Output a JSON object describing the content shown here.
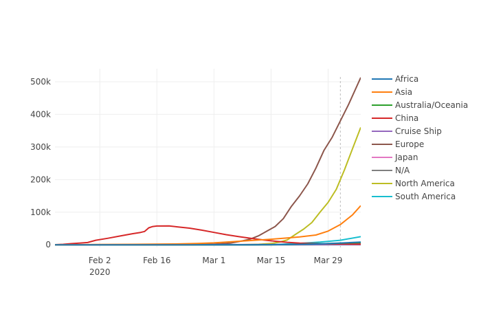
{
  "chart_data": {
    "type": "line",
    "title": "",
    "xlabel": "",
    "ylabel": "",
    "x_ticks": [
      {
        "date": "2020-02-02",
        "label": "Feb 2",
        "sublabel": "2020"
      },
      {
        "date": "2020-02-16",
        "label": "Feb 16",
        "sublabel": ""
      },
      {
        "date": "2020-03-01",
        "label": "Mar 1",
        "sublabel": ""
      },
      {
        "date": "2020-03-15",
        "label": "Mar 15",
        "sublabel": ""
      },
      {
        "date": "2020-03-29",
        "label": "Mar 29",
        "sublabel": ""
      }
    ],
    "xlim": [
      "2020-01-22",
      "2020-04-06"
    ],
    "y_ticks": [
      {
        "value": 0,
        "label": "0"
      },
      {
        "value": 100000,
        "label": "100k"
      },
      {
        "value": 200000,
        "label": "200k"
      },
      {
        "value": 300000,
        "label": "300k"
      },
      {
        "value": 400000,
        "label": "400k"
      },
      {
        "value": 500000,
        "label": "500k"
      }
    ],
    "ylim": [
      -8000,
      540000
    ],
    "grid": true,
    "legend_position": "right",
    "vline_date": "2020-04-01",
    "series": [
      {
        "name": "Africa",
        "color": "#1f77b4",
        "points": [
          [
            "2020-01-22",
            0
          ],
          [
            "2020-02-14",
            1
          ],
          [
            "2020-03-01",
            3
          ],
          [
            "2020-03-10",
            80
          ],
          [
            "2020-03-15",
            300
          ],
          [
            "2020-03-20",
            900
          ],
          [
            "2020-03-25",
            2200
          ],
          [
            "2020-03-30",
            4500
          ],
          [
            "2020-04-03",
            6500
          ],
          [
            "2020-04-06",
            8500
          ]
        ]
      },
      {
        "name": "Asia",
        "color": "#ff7f0e",
        "points": [
          [
            "2020-01-22",
            0
          ],
          [
            "2020-02-01",
            800
          ],
          [
            "2020-02-10",
            1500
          ],
          [
            "2020-02-20",
            2500
          ],
          [
            "2020-02-26",
            4000
          ],
          [
            "2020-03-01",
            6000
          ],
          [
            "2020-03-05",
            9000
          ],
          [
            "2020-03-10",
            13000
          ],
          [
            "2020-03-15",
            17000
          ],
          [
            "2020-03-19",
            21000
          ],
          [
            "2020-03-22",
            24000
          ],
          [
            "2020-03-26",
            30000
          ],
          [
            "2020-03-29",
            42000
          ],
          [
            "2020-04-01",
            62000
          ],
          [
            "2020-04-04",
            92000
          ],
          [
            "2020-04-06",
            120000
          ]
        ]
      },
      {
        "name": "Australia/Oceania",
        "color": "#2ca02c",
        "points": [
          [
            "2020-01-22",
            0
          ],
          [
            "2020-03-01",
            30
          ],
          [
            "2020-03-10",
            100
          ],
          [
            "2020-03-15",
            300
          ],
          [
            "2020-03-20",
            900
          ],
          [
            "2020-03-25",
            2500
          ],
          [
            "2020-03-30",
            4300
          ],
          [
            "2020-04-03",
            5600
          ],
          [
            "2020-04-06",
            6500
          ]
        ]
      },
      {
        "name": "China",
        "color": "#d62728",
        "points": [
          [
            "2020-01-22",
            400
          ],
          [
            "2020-01-24",
            1500
          ],
          [
            "2020-01-26",
            3500
          ],
          [
            "2020-01-28",
            5000
          ],
          [
            "2020-01-30",
            7000
          ],
          [
            "2020-02-01",
            14000
          ],
          [
            "2020-02-04",
            20000
          ],
          [
            "2020-02-07",
            27000
          ],
          [
            "2020-02-10",
            34000
          ],
          [
            "2020-02-12",
            38000
          ],
          [
            "2020-02-13",
            41000
          ],
          [
            "2020-02-14",
            52000
          ],
          [
            "2020-02-15",
            56000
          ],
          [
            "2020-02-16",
            57500
          ],
          [
            "2020-02-19",
            58000
          ],
          [
            "2020-02-21",
            55000
          ],
          [
            "2020-02-24",
            51000
          ],
          [
            "2020-02-27",
            45000
          ],
          [
            "2020-03-01",
            38000
          ],
          [
            "2020-03-04",
            31000
          ],
          [
            "2020-03-07",
            25000
          ],
          [
            "2020-03-10",
            20000
          ],
          [
            "2020-03-13",
            15000
          ],
          [
            "2020-03-16",
            11000
          ],
          [
            "2020-03-19",
            7500
          ],
          [
            "2020-03-22",
            5000
          ],
          [
            "2020-03-25",
            4000
          ],
          [
            "2020-03-29",
            3000
          ],
          [
            "2020-04-02",
            2500
          ],
          [
            "2020-04-06",
            2000
          ]
        ]
      },
      {
        "name": "Cruise Ship",
        "color": "#9467bd",
        "points": [
          [
            "2020-01-22",
            0
          ],
          [
            "2020-02-05",
            10
          ],
          [
            "2020-02-10",
            130
          ],
          [
            "2020-02-15",
            300
          ],
          [
            "2020-02-20",
            600
          ],
          [
            "2020-03-01",
            700
          ],
          [
            "2020-03-20",
            700
          ],
          [
            "2020-04-06",
            600
          ]
        ]
      },
      {
        "name": "Europe",
        "color": "#8c564b",
        "points": [
          [
            "2020-01-22",
            0
          ],
          [
            "2020-02-20",
            10
          ],
          [
            "2020-02-25",
            300
          ],
          [
            "2020-03-01",
            2000
          ],
          [
            "2020-03-05",
            5000
          ],
          [
            "2020-03-08",
            12000
          ],
          [
            "2020-03-10",
            18000
          ],
          [
            "2020-03-12",
            28000
          ],
          [
            "2020-03-14",
            42000
          ],
          [
            "2020-03-16",
            56000
          ],
          [
            "2020-03-18",
            80000
          ],
          [
            "2020-03-20",
            118000
          ],
          [
            "2020-03-22",
            150000
          ],
          [
            "2020-03-24",
            187000
          ],
          [
            "2020-03-26",
            235000
          ],
          [
            "2020-03-28",
            290000
          ],
          [
            "2020-03-30",
            330000
          ],
          [
            "2020-04-01",
            380000
          ],
          [
            "2020-04-03",
            430000
          ],
          [
            "2020-04-06",
            513000
          ]
        ]
      },
      {
        "name": "Japan",
        "color": "#e377c2",
        "points": [
          [
            "2020-01-22",
            0
          ],
          [
            "2020-02-15",
            30
          ],
          [
            "2020-03-01",
            200
          ],
          [
            "2020-03-15",
            700
          ],
          [
            "2020-03-25",
            1200
          ],
          [
            "2020-04-01",
            1900
          ],
          [
            "2020-04-06",
            2800
          ]
        ]
      },
      {
        "name": "N/A",
        "color": "#7f7f7f",
        "points": [
          [
            "2020-01-22",
            0
          ],
          [
            "2020-03-01",
            0
          ],
          [
            "2020-03-20",
            100
          ],
          [
            "2020-04-06",
            300
          ]
        ]
      },
      {
        "name": "North America",
        "color": "#bcbd22",
        "points": [
          [
            "2020-01-22",
            0
          ],
          [
            "2020-03-01",
            80
          ],
          [
            "2020-03-08",
            500
          ],
          [
            "2020-03-12",
            1800
          ],
          [
            "2020-03-15",
            4000
          ],
          [
            "2020-03-17",
            8000
          ],
          [
            "2020-03-19",
            15000
          ],
          [
            "2020-03-21",
            32000
          ],
          [
            "2020-03-23",
            48000
          ],
          [
            "2020-03-25",
            68000
          ],
          [
            "2020-03-27",
            100000
          ],
          [
            "2020-03-29",
            130000
          ],
          [
            "2020-03-31",
            170000
          ],
          [
            "2020-04-02",
            230000
          ],
          [
            "2020-04-04",
            295000
          ],
          [
            "2020-04-06",
            360000
          ]
        ]
      },
      {
        "name": "South America",
        "color": "#17becf",
        "points": [
          [
            "2020-01-22",
            0
          ],
          [
            "2020-03-05",
            20
          ],
          [
            "2020-03-12",
            300
          ],
          [
            "2020-03-17",
            1500
          ],
          [
            "2020-03-22",
            4500
          ],
          [
            "2020-03-27",
            8500
          ],
          [
            "2020-04-01",
            14000
          ],
          [
            "2020-04-06",
            25000
          ]
        ]
      }
    ]
  }
}
